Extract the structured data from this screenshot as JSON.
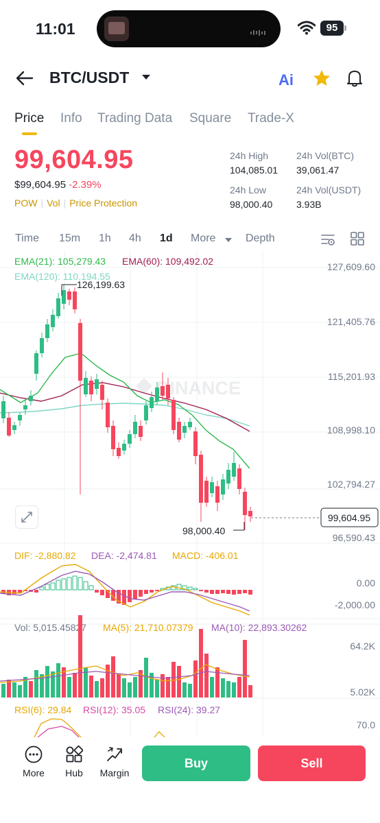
{
  "status_bar": {
    "time": "11:01",
    "battery": "95"
  },
  "header": {
    "pair": "BTC/USDT",
    "ai_label": "Ai"
  },
  "tabs": [
    {
      "label": "Price",
      "active": true
    },
    {
      "label": "Info",
      "active": false
    },
    {
      "label": "Trading Data",
      "active": false
    },
    {
      "label": "Square",
      "active": false
    },
    {
      "label": "Trade-X",
      "active": false
    }
  ],
  "price": {
    "last": "99,604.95",
    "fiat": "$99,604.95",
    "change": "-2.39%",
    "tags": [
      "POW",
      "Vol",
      "Price Protection"
    ]
  },
  "stats": {
    "high_label": "24h High",
    "high": "104,085.01",
    "vol_btc_label": "24h Vol(BTC)",
    "vol_btc": "39,061.47",
    "low_label": "24h Low",
    "low": "98,000.40",
    "vol_usdt_label": "24h Vol(USDT)",
    "vol_usdt": "3.93B"
  },
  "intervals": [
    "Time",
    "15m",
    "1h",
    "4h",
    "1d",
    "More",
    "Depth"
  ],
  "active_interval": "1d",
  "chart": {
    "watermark": "BINANCE",
    "ema": {
      "ema21": "EMA(21): 105,279.43",
      "ema60": "EMA(60): 109,492.02",
      "ema120": "EMA(120): 110,194.55"
    },
    "price_axis": [
      "127,609.60",
      "121,405.76",
      "115,201.93",
      "108,998.10",
      "102,794.27",
      "96,590.43"
    ],
    "current_price": "99,604.95",
    "high_marker": "126,199.63",
    "low_marker": "98,000.40",
    "macd": {
      "dif": "DIF: -2,880.82",
      "dea": "DEA: -2,474.81",
      "macd": "MACD: -406.01",
      "axis": [
        "0.00",
        "-2,000.00"
      ]
    },
    "vol": {
      "vol": "Vol: 5,015.45827",
      "ma5": "MA(5): 21,710.07379",
      "ma10": "MA(10): 22,893.30262",
      "axis": [
        "64.2K",
        "5.02K"
      ]
    },
    "rsi": {
      "rsi6": "RSI(6): 29.84",
      "rsi12": "RSI(12): 35.05",
      "rsi24": "RSI(24): 39.27",
      "axis": [
        "70.0"
      ]
    }
  },
  "colors": {
    "up": "#2ebd85",
    "down": "#f6465d",
    "accent": "#f0b90b",
    "ema21": "#2db94d",
    "ema60": "#a01d50",
    "ema120": "#7fd6c4",
    "dif": "#e8a800",
    "dea": "#9b59b6"
  },
  "bottom_bar": {
    "more": "More",
    "hub": "Hub",
    "margin": "Margin",
    "buy": "Buy",
    "sell": "Sell"
  }
}
